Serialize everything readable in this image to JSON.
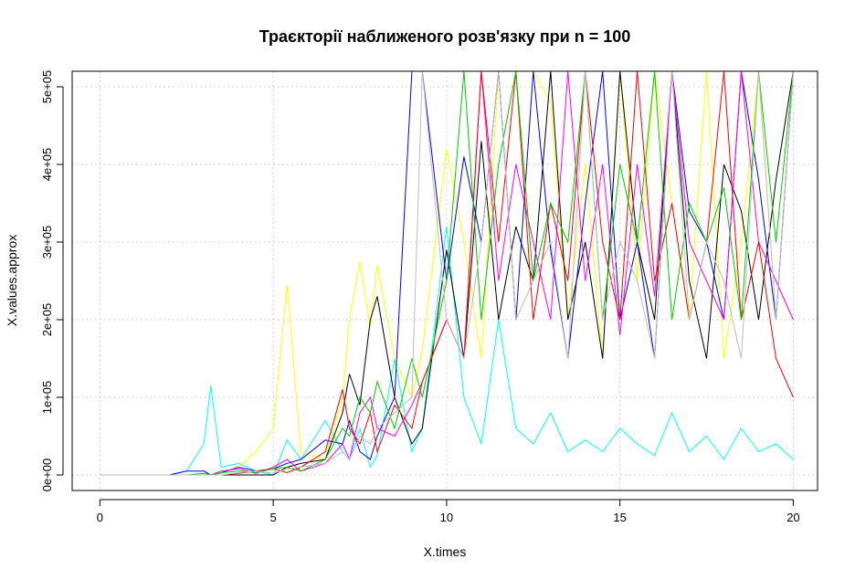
{
  "chart_data": {
    "type": "line",
    "title": "Траєкторії наближеного розв'язку при n = 100",
    "xlabel": "X.times",
    "ylabel": "X.values.approx",
    "xlim": [
      0,
      20
    ],
    "ylim": [
      -20000,
      520000
    ],
    "x_ticks": [
      0,
      5,
      10,
      15,
      20
    ],
    "x_tick_labels": [
      "0",
      "5",
      "10",
      "15",
      "20"
    ],
    "y_ticks": [
      0,
      100000,
      200000,
      300000,
      400000,
      500000
    ],
    "y_tick_labels": [
      "0e+00",
      "1e+05",
      "2e+05",
      "3e+05",
      "4e+05",
      "5e+05"
    ],
    "grid": true,
    "grid_style": "dotted",
    "legend": "none",
    "palette": [
      "#000000",
      "#ff0000",
      "#00cd00",
      "#0000ff",
      "#00ffff",
      "#ff00ff",
      "#ffff00",
      "#bebebe"
    ],
    "x": [
      0,
      1,
      2,
      2.5,
      3,
      3.2,
      3.5,
      4,
      4.5,
      5,
      5.4,
      5.8,
      6.5,
      7,
      7.2,
      7.5,
      7.8,
      8,
      8.5,
      9,
      9.3,
      10,
      10.5,
      11,
      11.5,
      12,
      12.5,
      13,
      13.5,
      14,
      14.5,
      15,
      15.5,
      16,
      16.5,
      17,
      17.5,
      18,
      18.5,
      19,
      19.5,
      20
    ],
    "series": [
      {
        "color": "#00ffff",
        "values": [
          0,
          0,
          0,
          5000,
          40000,
          115000,
          10000,
          15000,
          5000,
          0,
          45000,
          20000,
          70000,
          30000,
          20000,
          60000,
          10000,
          25000,
          150000,
          30000,
          60000,
          320000,
          100000,
          40000,
          200000,
          60000,
          40000,
          80000,
          30000,
          45000,
          30000,
          60000,
          40000,
          25000,
          80000,
          30000,
          50000,
          20000,
          60000,
          30000,
          40000,
          20000
        ]
      },
      {
        "color": "#ffff00",
        "values": [
          0,
          0,
          0,
          0,
          0,
          0,
          2000,
          10000,
          30000,
          60000,
          245000,
          30000,
          20000,
          100000,
          200000,
          275000,
          190000,
          270000,
          150000,
          100000,
          160000,
          420000,
          300000,
          150000,
          520000,
          200000,
          520000,
          480000,
          200000,
          400000,
          150000,
          520000,
          250000,
          520000,
          350000,
          200000,
          520000,
          150000,
          300000,
          520000,
          200000,
          520000
        ]
      },
      {
        "color": "#000000",
        "values": [
          0,
          0,
          0,
          0,
          0,
          0,
          0,
          0,
          0,
          0,
          10000,
          15000,
          20000,
          80000,
          130000,
          90000,
          200000,
          230000,
          100000,
          40000,
          60000,
          290000,
          150000,
          430000,
          200000,
          320000,
          250000,
          520000,
          200000,
          300000,
          150000,
          520000,
          300000,
          200000,
          520000,
          250000,
          150000,
          400000,
          340000,
          200000,
          380000,
          520000
        ]
      },
      {
        "color": "#0000ff",
        "values": [
          0,
          0,
          0,
          5000,
          5000,
          0,
          3000,
          10000,
          5000,
          8000,
          15000,
          20000,
          45000,
          40000,
          70000,
          30000,
          20000,
          50000,
          100000,
          520000,
          520000,
          250000,
          410000,
          300000,
          520000,
          200000,
          520000,
          290000,
          150000,
          350000,
          520000,
          200000,
          300000,
          150000,
          520000,
          340000,
          300000,
          200000,
          520000,
          380000,
          200000,
          520000
        ]
      },
      {
        "color": "#ff00ff",
        "values": [
          0,
          0,
          0,
          0,
          0,
          0,
          5000,
          8000,
          2000,
          10000,
          20000,
          5000,
          15000,
          40000,
          20000,
          80000,
          100000,
          60000,
          50000,
          90000,
          120000,
          200000,
          150000,
          520000,
          250000,
          400000,
          300000,
          200000,
          520000,
          250000,
          400000,
          180000,
          400000,
          230000,
          520000,
          300000,
          250000,
          200000,
          520000,
          300000,
          250000,
          200000
        ]
      },
      {
        "color": "#ff0000",
        "values": [
          0,
          0,
          0,
          0,
          0,
          0,
          0,
          2000,
          5000,
          8000,
          3000,
          10000,
          30000,
          110000,
          60000,
          40000,
          80000,
          30000,
          90000,
          60000,
          120000,
          200000,
          150000,
          520000,
          300000,
          520000,
          200000,
          350000,
          250000,
          520000,
          300000,
          200000,
          520000,
          250000,
          350000,
          200000,
          300000,
          520000,
          200000,
          300000,
          150000,
          100000
        ]
      },
      {
        "color": "#00cd00",
        "values": [
          0,
          0,
          0,
          0,
          2000,
          0,
          3000,
          5000,
          3000,
          8000,
          10000,
          5000,
          20000,
          60000,
          50000,
          100000,
          80000,
          120000,
          60000,
          150000,
          100000,
          250000,
          520000,
          200000,
          400000,
          520000,
          250000,
          350000,
          300000,
          520000,
          200000,
          400000,
          300000,
          520000,
          200000,
          350000,
          300000,
          370000,
          200000,
          520000,
          300000,
          520000
        ]
      },
      {
        "color": "#bebebe",
        "values": [
          0,
          0,
          0,
          0,
          0,
          0,
          0,
          3000,
          5000,
          2000,
          8000,
          10000,
          15000,
          30000,
          20000,
          50000,
          40000,
          60000,
          80000,
          100000,
          520000,
          200000,
          150000,
          300000,
          520000,
          200000,
          250000,
          300000,
          150000,
          520000,
          200000,
          300000,
          250000,
          150000,
          520000,
          200000,
          300000,
          250000,
          150000,
          520000,
          200000,
          520000
        ]
      }
    ]
  }
}
